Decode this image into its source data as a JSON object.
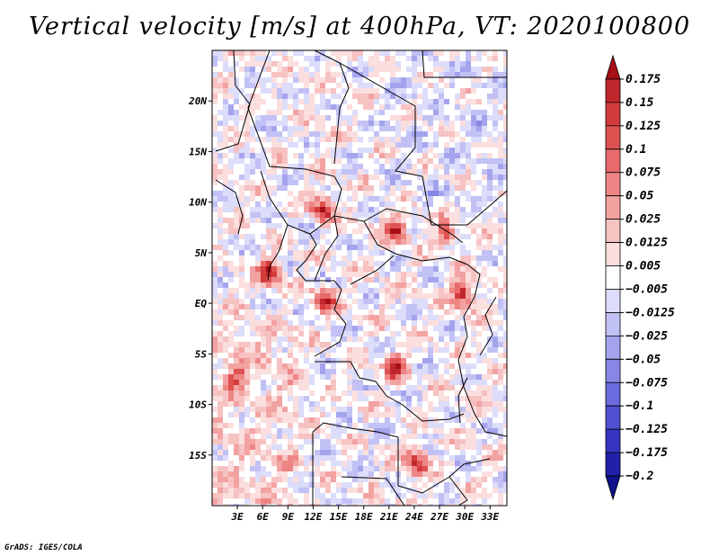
{
  "title": "Vertical velocity [m/s] at 400hPa, VT: 2020100800",
  "credit": "GrADS: IGES/COLA",
  "map": {
    "type": "heatmap",
    "lon_range": [
      0,
      35
    ],
    "lat_range": [
      -20,
      25
    ],
    "lat_ticks": [
      {
        "value": 20,
        "label": "20N"
      },
      {
        "value": 15,
        "label": "15N"
      },
      {
        "value": 10,
        "label": "10N"
      },
      {
        "value": 5,
        "label": "5N"
      },
      {
        "value": 0,
        "label": "EQ"
      },
      {
        "value": -5,
        "label": "5S"
      },
      {
        "value": -10,
        "label": "10S"
      },
      {
        "value": -15,
        "label": "15S"
      }
    ],
    "lon_ticks": [
      {
        "value": 3,
        "label": "3E"
      },
      {
        "value": 6,
        "label": "6E"
      },
      {
        "value": 9,
        "label": "9E"
      },
      {
        "value": 12,
        "label": "12E"
      },
      {
        "value": 15,
        "label": "15E"
      },
      {
        "value": 18,
        "label": "18E"
      },
      {
        "value": 21,
        "label": "21E"
      },
      {
        "value": 24,
        "label": "24E"
      },
      {
        "value": 27,
        "label": "27E"
      },
      {
        "value": 30,
        "label": "30E"
      },
      {
        "value": 33,
        "label": "33E"
      }
    ],
    "hotspots": [
      {
        "lon": 6.5,
        "lat": 3.3,
        "strength": 1.0
      },
      {
        "lon": 12.8,
        "lat": 9.5,
        "strength": 0.9
      },
      {
        "lon": 21.5,
        "lat": 7.5,
        "strength": 0.9
      },
      {
        "lon": 27.5,
        "lat": 7.0,
        "strength": 0.6
      },
      {
        "lon": 13.0,
        "lat": 0.5,
        "strength": 0.8
      },
      {
        "lon": 29.5,
        "lat": 1.2,
        "strength": 0.9
      },
      {
        "lon": 21.5,
        "lat": -6.0,
        "strength": 0.8
      },
      {
        "lon": 24.0,
        "lat": -15.5,
        "strength": 0.9
      },
      {
        "lon": 2.5,
        "lat": -7.0,
        "strength": 0.5
      }
    ]
  },
  "colorbar": {
    "levels": [
      "0.175",
      "0.15",
      "0.125",
      "0.1",
      "0.075",
      "0.05",
      "0.025",
      "0.0125",
      "0.005",
      "−0.005",
      "−0.0125",
      "−0.025",
      "−0.05",
      "−0.075",
      "−0.1",
      "−0.125",
      "−0.175",
      "−0.2"
    ],
    "colors": [
      "#a50f15",
      "#c0272d",
      "#d43b3b",
      "#e05252",
      "#e86a6a",
      "#ee8585",
      "#f3a2a2",
      "#f7c2c2",
      "#fbdede",
      "#ffffff",
      "#dcdcfb",
      "#c1c1f5",
      "#a4a4ee",
      "#8787e6",
      "#6b6bdd",
      "#4f4fd2",
      "#3535c2",
      "#2020a8",
      "#10108a"
    ]
  }
}
